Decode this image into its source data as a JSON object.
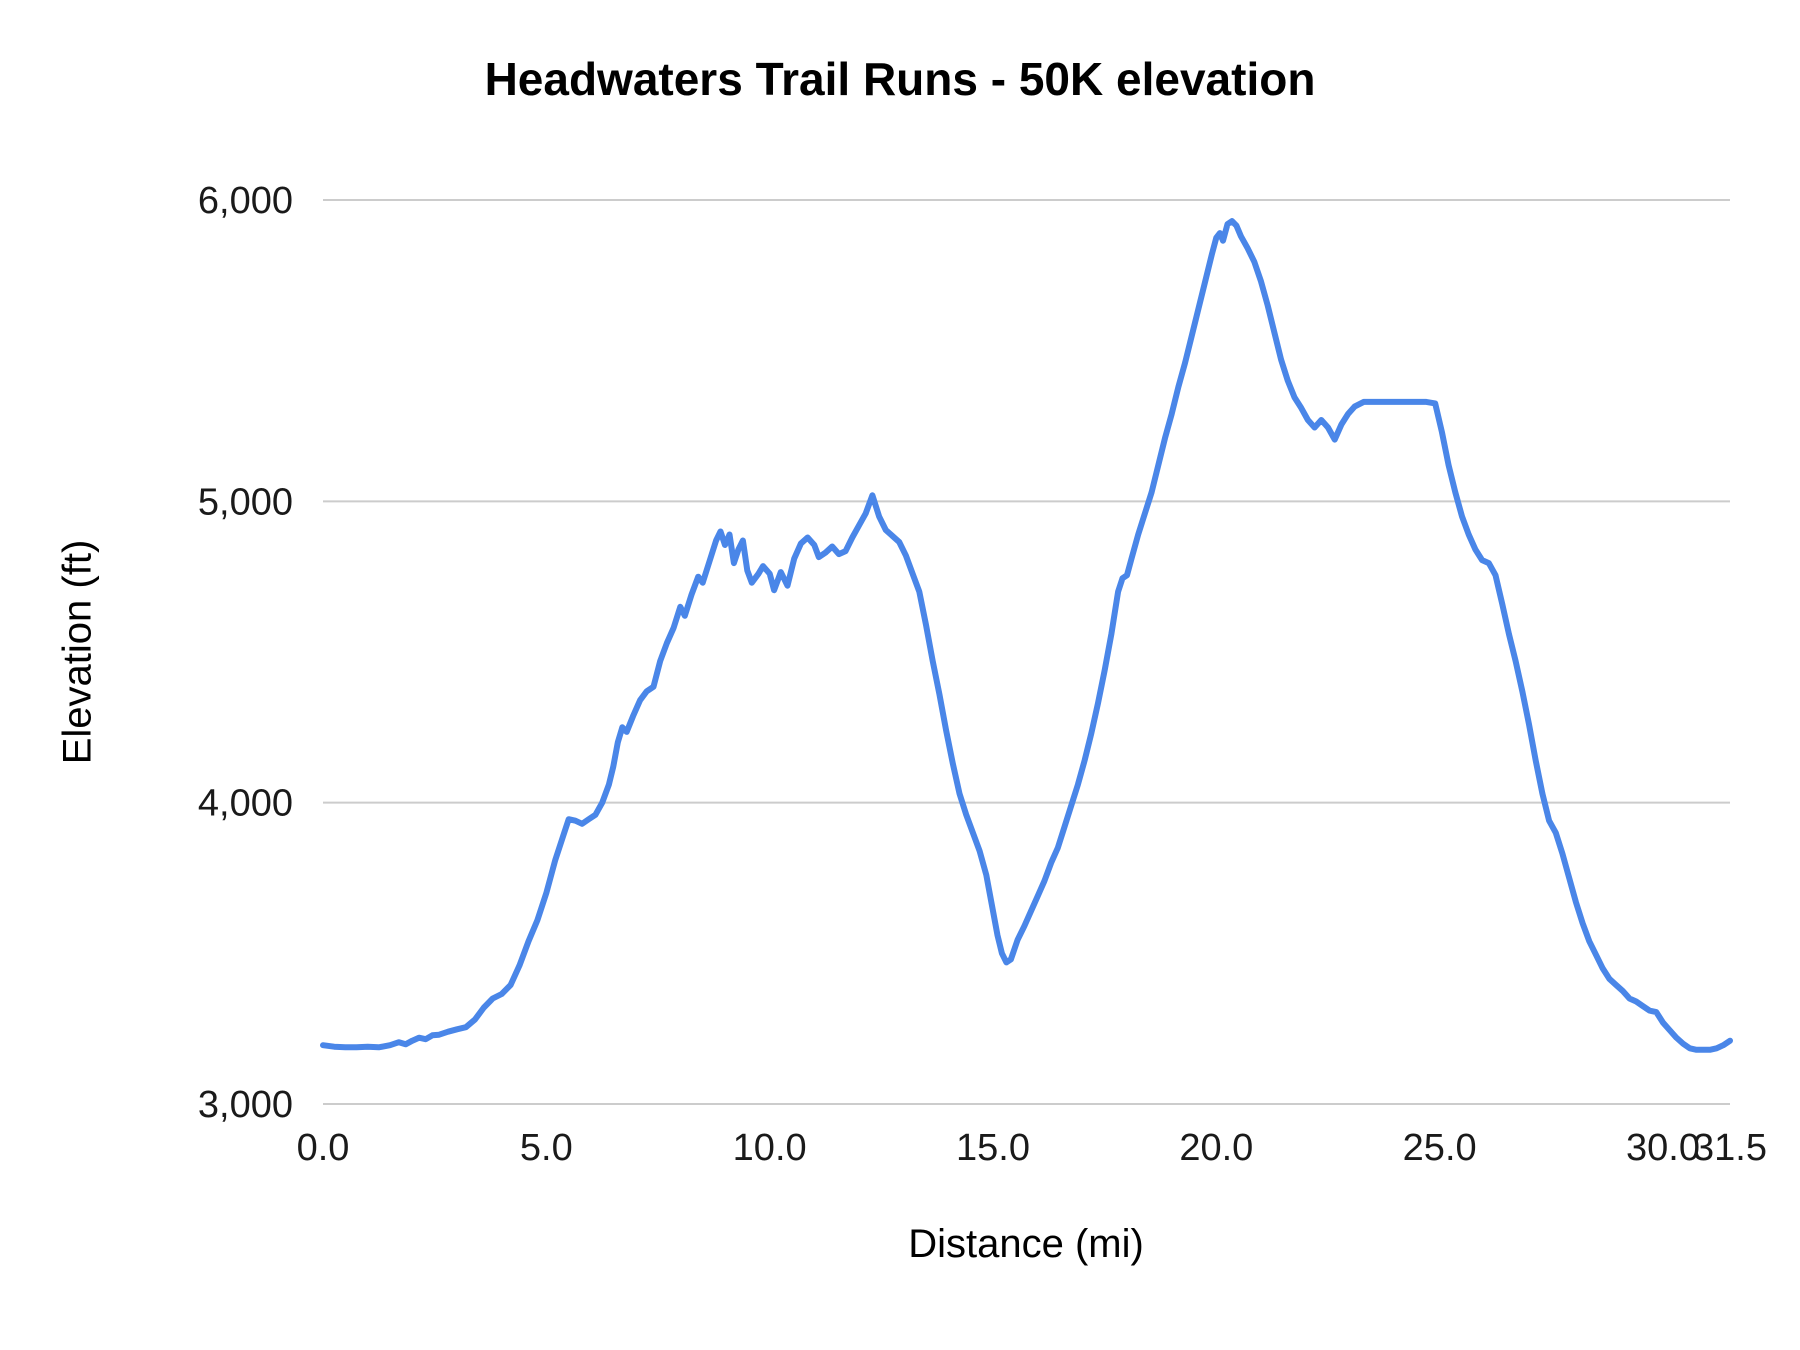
{
  "chart_data": {
    "type": "line",
    "title": "Headwaters Trail Runs - 50K elevation",
    "xlabel": "Distance (mi)",
    "ylabel": "Elevation (ft)",
    "xlim": [
      0,
      31.5
    ],
    "ylim": [
      3000,
      6000
    ],
    "grid": "horizontal-only",
    "legend": "none",
    "background_color": "#ffffff",
    "line_color": "#4a86e8",
    "grid_color": "#cccccc",
    "x_ticks": [
      {
        "value": 0,
        "label": "0.0"
      },
      {
        "value": 5,
        "label": "5.0"
      },
      {
        "value": 10,
        "label": "10.0"
      },
      {
        "value": 15,
        "label": "15.0"
      },
      {
        "value": 20,
        "label": "20.0"
      },
      {
        "value": 25,
        "label": "25.0"
      },
      {
        "value": 30,
        "label": "30.0"
      },
      {
        "value": 31.5,
        "label": "31.5"
      }
    ],
    "y_ticks": [
      {
        "value": 3000,
        "label": "3,000"
      },
      {
        "value": 4000,
        "label": "4,000"
      },
      {
        "value": 5000,
        "label": "5,000"
      },
      {
        "value": 6000,
        "label": "6,000"
      }
    ],
    "series": [
      {
        "name": "Elevation",
        "points": [
          [
            0.0,
            3195
          ],
          [
            0.25,
            3190
          ],
          [
            0.5,
            3188
          ],
          [
            0.75,
            3188
          ],
          [
            1.0,
            3190
          ],
          [
            1.25,
            3188
          ],
          [
            1.5,
            3195
          ],
          [
            1.7,
            3205
          ],
          [
            1.85,
            3198
          ],
          [
            2.0,
            3210
          ],
          [
            2.15,
            3220
          ],
          [
            2.3,
            3215
          ],
          [
            2.45,
            3228
          ],
          [
            2.6,
            3230
          ],
          [
            2.8,
            3240
          ],
          [
            3.0,
            3248
          ],
          [
            3.2,
            3255
          ],
          [
            3.4,
            3280
          ],
          [
            3.6,
            3320
          ],
          [
            3.8,
            3350
          ],
          [
            4.0,
            3365
          ],
          [
            4.2,
            3395
          ],
          [
            4.4,
            3460
          ],
          [
            4.6,
            3540
          ],
          [
            4.8,
            3610
          ],
          [
            5.0,
            3700
          ],
          [
            5.2,
            3810
          ],
          [
            5.4,
            3900
          ],
          [
            5.5,
            3945
          ],
          [
            5.65,
            3940
          ],
          [
            5.8,
            3930
          ],
          [
            5.95,
            3945
          ],
          [
            6.1,
            3960
          ],
          [
            6.25,
            4000
          ],
          [
            6.4,
            4060
          ],
          [
            6.5,
            4120
          ],
          [
            6.6,
            4200
          ],
          [
            6.7,
            4250
          ],
          [
            6.8,
            4235
          ],
          [
            6.95,
            4290
          ],
          [
            7.1,
            4340
          ],
          [
            7.25,
            4370
          ],
          [
            7.4,
            4385
          ],
          [
            7.55,
            4470
          ],
          [
            7.7,
            4530
          ],
          [
            7.85,
            4580
          ],
          [
            8.0,
            4650
          ],
          [
            8.1,
            4620
          ],
          [
            8.25,
            4690
          ],
          [
            8.4,
            4750
          ],
          [
            8.5,
            4730
          ],
          [
            8.65,
            4800
          ],
          [
            8.8,
            4870
          ],
          [
            8.9,
            4900
          ],
          [
            9.0,
            4855
          ],
          [
            9.1,
            4890
          ],
          [
            9.2,
            4795
          ],
          [
            9.3,
            4840
          ],
          [
            9.4,
            4870
          ],
          [
            9.5,
            4770
          ],
          [
            9.6,
            4730
          ],
          [
            9.75,
            4760
          ],
          [
            9.85,
            4785
          ],
          [
            10.0,
            4760
          ],
          [
            10.1,
            4705
          ],
          [
            10.25,
            4765
          ],
          [
            10.4,
            4720
          ],
          [
            10.55,
            4810
          ],
          [
            10.7,
            4860
          ],
          [
            10.85,
            4880
          ],
          [
            11.0,
            4855
          ],
          [
            11.1,
            4815
          ],
          [
            11.25,
            4830
          ],
          [
            11.4,
            4850
          ],
          [
            11.55,
            4825
          ],
          [
            11.7,
            4835
          ],
          [
            11.85,
            4880
          ],
          [
            12.0,
            4920
          ],
          [
            12.15,
            4960
          ],
          [
            12.3,
            5020
          ],
          [
            12.45,
            4950
          ],
          [
            12.6,
            4905
          ],
          [
            12.75,
            4885
          ],
          [
            12.9,
            4865
          ],
          [
            13.05,
            4820
          ],
          [
            13.2,
            4760
          ],
          [
            13.35,
            4700
          ],
          [
            13.5,
            4590
          ],
          [
            13.65,
            4470
          ],
          [
            13.8,
            4360
          ],
          [
            13.95,
            4240
          ],
          [
            14.1,
            4130
          ],
          [
            14.25,
            4030
          ],
          [
            14.4,
            3960
          ],
          [
            14.55,
            3900
          ],
          [
            14.7,
            3840
          ],
          [
            14.85,
            3760
          ],
          [
            15.0,
            3640
          ],
          [
            15.1,
            3560
          ],
          [
            15.2,
            3500
          ],
          [
            15.3,
            3470
          ],
          [
            15.4,
            3480
          ],
          [
            15.55,
            3545
          ],
          [
            15.7,
            3590
          ],
          [
            15.85,
            3640
          ],
          [
            16.0,
            3690
          ],
          [
            16.15,
            3740
          ],
          [
            16.3,
            3800
          ],
          [
            16.45,
            3850
          ],
          [
            16.6,
            3920
          ],
          [
            16.75,
            3990
          ],
          [
            16.9,
            4060
          ],
          [
            17.05,
            4140
          ],
          [
            17.2,
            4230
          ],
          [
            17.35,
            4330
          ],
          [
            17.5,
            4440
          ],
          [
            17.65,
            4560
          ],
          [
            17.8,
            4700
          ],
          [
            17.9,
            4745
          ],
          [
            18.0,
            4755
          ],
          [
            18.1,
            4810
          ],
          [
            18.25,
            4890
          ],
          [
            18.4,
            4960
          ],
          [
            18.55,
            5030
          ],
          [
            18.7,
            5120
          ],
          [
            18.85,
            5210
          ],
          [
            19.0,
            5290
          ],
          [
            19.15,
            5380
          ],
          [
            19.3,
            5460
          ],
          [
            19.45,
            5550
          ],
          [
            19.6,
            5640
          ],
          [
            19.75,
            5730
          ],
          [
            19.9,
            5820
          ],
          [
            20.0,
            5875
          ],
          [
            20.08,
            5890
          ],
          [
            20.15,
            5865
          ],
          [
            20.25,
            5920
          ],
          [
            20.35,
            5930
          ],
          [
            20.45,
            5915
          ],
          [
            20.55,
            5880
          ],
          [
            20.7,
            5840
          ],
          [
            20.85,
            5795
          ],
          [
            21.0,
            5730
          ],
          [
            21.15,
            5650
          ],
          [
            21.3,
            5560
          ],
          [
            21.45,
            5470
          ],
          [
            21.6,
            5400
          ],
          [
            21.75,
            5345
          ],
          [
            21.9,
            5310
          ],
          [
            22.05,
            5270
          ],
          [
            22.2,
            5245
          ],
          [
            22.35,
            5270
          ],
          [
            22.5,
            5245
          ],
          [
            22.65,
            5205
          ],
          [
            22.8,
            5255
          ],
          [
            22.95,
            5290
          ],
          [
            23.1,
            5315
          ],
          [
            23.3,
            5330
          ],
          [
            23.5,
            5330
          ],
          [
            23.7,
            5330
          ],
          [
            23.9,
            5330
          ],
          [
            24.1,
            5330
          ],
          [
            24.3,
            5330
          ],
          [
            24.5,
            5330
          ],
          [
            24.7,
            5330
          ],
          [
            24.9,
            5325
          ],
          [
            25.05,
            5230
          ],
          [
            25.2,
            5120
          ],
          [
            25.35,
            5030
          ],
          [
            25.5,
            4950
          ],
          [
            25.65,
            4890
          ],
          [
            25.8,
            4840
          ],
          [
            25.95,
            4805
          ],
          [
            26.1,
            4795
          ],
          [
            26.25,
            4755
          ],
          [
            26.4,
            4660
          ],
          [
            26.55,
            4560
          ],
          [
            26.7,
            4470
          ],
          [
            26.85,
            4370
          ],
          [
            27.0,
            4260
          ],
          [
            27.15,
            4140
          ],
          [
            27.3,
            4030
          ],
          [
            27.45,
            3940
          ],
          [
            27.6,
            3900
          ],
          [
            27.75,
            3830
          ],
          [
            27.9,
            3750
          ],
          [
            28.05,
            3670
          ],
          [
            28.2,
            3600
          ],
          [
            28.35,
            3540
          ],
          [
            28.5,
            3495
          ],
          [
            28.65,
            3450
          ],
          [
            28.8,
            3415
          ],
          [
            28.95,
            3395
          ],
          [
            29.1,
            3375
          ],
          [
            29.25,
            3350
          ],
          [
            29.4,
            3340
          ],
          [
            29.55,
            3325
          ],
          [
            29.7,
            3310
          ],
          [
            29.85,
            3305
          ],
          [
            30.0,
            3270
          ],
          [
            30.15,
            3245
          ],
          [
            30.3,
            3220
          ],
          [
            30.45,
            3200
          ],
          [
            30.6,
            3185
          ],
          [
            30.75,
            3180
          ],
          [
            30.9,
            3180
          ],
          [
            31.05,
            3180
          ],
          [
            31.2,
            3185
          ],
          [
            31.35,
            3195
          ],
          [
            31.5,
            3210
          ]
        ]
      }
    ]
  }
}
